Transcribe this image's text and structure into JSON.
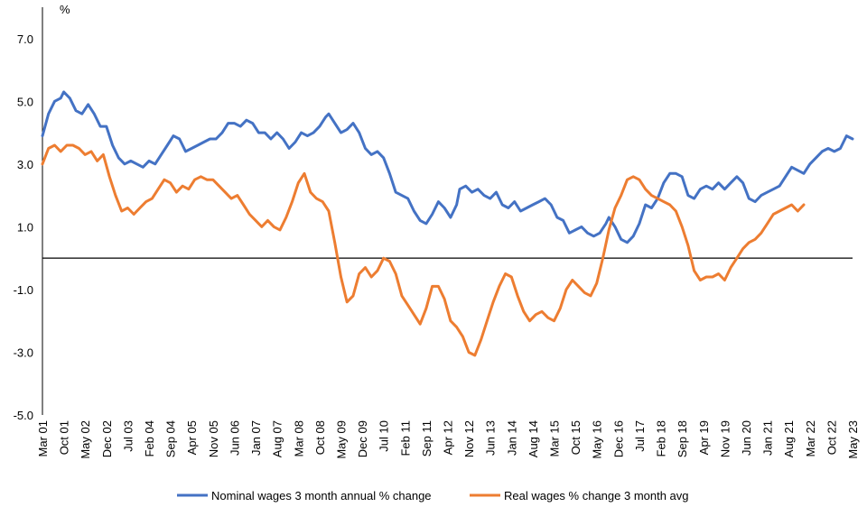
{
  "chart_data": {
    "type": "line",
    "y_unit_label": "%",
    "ylim": [
      -5,
      8
    ],
    "y_ticks": [
      7,
      5,
      3,
      1,
      -1,
      -3,
      -5
    ],
    "y_tick_labels": [
      "7.0",
      "5.0",
      "3.0",
      "1.0",
      "-1.0",
      "-3.0",
      "-5.0"
    ],
    "x_range": [
      0,
      266
    ],
    "x_tick_labels": [
      "Mar 01",
      "Oct 01",
      "May 02",
      "Dec 02",
      "Jul 03",
      "Feb 04",
      "Sep 04",
      "Apr 05",
      "Nov 05",
      "Jun 06",
      "Jan 07",
      "Aug 07",
      "Mar 08",
      "Oct 08",
      "May 09",
      "Dec 09",
      "Jul 10",
      "Feb 11",
      "Sep 11",
      "Apr 12",
      "Nov 12",
      "Jun 13",
      "Jan 14",
      "Aug 14",
      "Mar 15",
      "Oct 15",
      "May 16",
      "Dec 16",
      "Jul 17",
      "Feb 18",
      "Sep 18",
      "Apr 19",
      "Nov 19",
      "Jun 20",
      "Jan 21",
      "Aug 21",
      "Mar 22",
      "Oct 22",
      "May 23"
    ],
    "x_tick_step_months": 7,
    "zero_line": true,
    "series": [
      {
        "name": "Nominal wages 3 month annual % change",
        "color": "#4472C4",
        "points": [
          [
            0,
            3.9
          ],
          [
            2,
            4.6
          ],
          [
            4,
            5.0
          ],
          [
            6,
            5.1
          ],
          [
            7,
            5.3
          ],
          [
            9,
            5.1
          ],
          [
            11,
            4.7
          ],
          [
            13,
            4.6
          ],
          [
            15,
            4.9
          ],
          [
            17,
            4.6
          ],
          [
            19,
            4.2
          ],
          [
            21,
            4.2
          ],
          [
            23,
            3.6
          ],
          [
            25,
            3.2
          ],
          [
            27,
            3.0
          ],
          [
            29,
            3.1
          ],
          [
            31,
            3.0
          ],
          [
            33,
            2.9
          ],
          [
            35,
            3.1
          ],
          [
            37,
            3.0
          ],
          [
            39,
            3.3
          ],
          [
            41,
            3.6
          ],
          [
            43,
            3.9
          ],
          [
            45,
            3.8
          ],
          [
            47,
            3.4
          ],
          [
            49,
            3.5
          ],
          [
            51,
            3.6
          ],
          [
            53,
            3.7
          ],
          [
            55,
            3.8
          ],
          [
            57,
            3.8
          ],
          [
            59,
            4.0
          ],
          [
            61,
            4.3
          ],
          [
            63,
            4.3
          ],
          [
            65,
            4.2
          ],
          [
            67,
            4.4
          ],
          [
            69,
            4.3
          ],
          [
            71,
            4.0
          ],
          [
            73,
            4.0
          ],
          [
            75,
            3.8
          ],
          [
            77,
            4.0
          ],
          [
            79,
            3.8
          ],
          [
            81,
            3.5
          ],
          [
            83,
            3.7
          ],
          [
            85,
            4.0
          ],
          [
            87,
            3.9
          ],
          [
            89,
            4.0
          ],
          [
            91,
            4.2
          ],
          [
            93,
            4.5
          ],
          [
            94,
            4.6
          ],
          [
            96,
            4.3
          ],
          [
            98,
            4.0
          ],
          [
            100,
            4.1
          ],
          [
            102,
            4.3
          ],
          [
            104,
            4.0
          ],
          [
            106,
            3.5
          ],
          [
            108,
            3.3
          ],
          [
            110,
            3.4
          ],
          [
            112,
            3.2
          ],
          [
            114,
            2.7
          ],
          [
            116,
            2.1
          ],
          [
            118,
            2.0
          ],
          [
            120,
            1.9
          ],
          [
            122,
            1.5
          ],
          [
            124,
            1.2
          ],
          [
            126,
            1.1
          ],
          [
            128,
            1.4
          ],
          [
            130,
            1.8
          ],
          [
            132,
            1.6
          ],
          [
            134,
            1.3
          ],
          [
            136,
            1.7
          ],
          [
            137,
            2.2
          ],
          [
            139,
            2.3
          ],
          [
            141,
            2.1
          ],
          [
            143,
            2.2
          ],
          [
            145,
            2.0
          ],
          [
            147,
            1.9
          ],
          [
            149,
            2.1
          ],
          [
            151,
            1.7
          ],
          [
            153,
            1.6
          ],
          [
            155,
            1.8
          ],
          [
            157,
            1.5
          ],
          [
            159,
            1.6
          ],
          [
            161,
            1.7
          ],
          [
            163,
            1.8
          ],
          [
            165,
            1.9
          ],
          [
            167,
            1.7
          ],
          [
            169,
            1.3
          ],
          [
            171,
            1.2
          ],
          [
            173,
            0.8
          ],
          [
            175,
            0.9
          ],
          [
            177,
            1.0
          ],
          [
            179,
            0.8
          ],
          [
            181,
            0.7
          ],
          [
            183,
            0.8
          ],
          [
            185,
            1.1
          ],
          [
            186,
            1.3
          ],
          [
            188,
            1.0
          ],
          [
            190,
            0.6
          ],
          [
            192,
            0.5
          ],
          [
            194,
            0.7
          ],
          [
            196,
            1.1
          ],
          [
            198,
            1.7
          ],
          [
            200,
            1.6
          ],
          [
            202,
            1.9
          ],
          [
            204,
            2.4
          ],
          [
            206,
            2.7
          ],
          [
            208,
            2.7
          ],
          [
            210,
            2.6
          ],
          [
            212,
            2.0
          ],
          [
            214,
            1.9
          ],
          [
            216,
            2.2
          ],
          [
            218,
            2.3
          ],
          [
            220,
            2.2
          ],
          [
            222,
            2.4
          ],
          [
            224,
            2.2
          ],
          [
            226,
            2.4
          ],
          [
            228,
            2.6
          ],
          [
            230,
            2.4
          ],
          [
            232,
            1.9
          ],
          [
            234,
            1.8
          ],
          [
            236,
            2.0
          ],
          [
            238,
            2.1
          ],
          [
            240,
            2.2
          ],
          [
            242,
            2.3
          ],
          [
            244,
            2.6
          ],
          [
            246,
            2.9
          ],
          [
            248,
            2.8
          ],
          [
            250,
            2.7
          ],
          [
            252,
            3.0
          ],
          [
            254,
            3.2
          ],
          [
            256,
            3.4
          ],
          [
            258,
            3.5
          ],
          [
            260,
            3.4
          ],
          [
            262,
            3.5
          ],
          [
            264,
            3.9
          ],
          [
            266,
            3.8
          ]
        ]
      },
      {
        "name": "Real wages % change 3 month avg",
        "color": "#ED7D31",
        "points": [
          [
            0,
            3.0
          ],
          [
            2,
            3.5
          ],
          [
            4,
            3.6
          ],
          [
            6,
            3.4
          ],
          [
            8,
            3.6
          ],
          [
            10,
            3.6
          ],
          [
            12,
            3.5
          ],
          [
            14,
            3.3
          ],
          [
            16,
            3.4
          ],
          [
            18,
            3.1
          ],
          [
            20,
            3.3
          ],
          [
            22,
            2.6
          ],
          [
            24,
            2.0
          ],
          [
            26,
            1.5
          ],
          [
            28,
            1.6
          ],
          [
            30,
            1.4
          ],
          [
            32,
            1.6
          ],
          [
            34,
            1.8
          ],
          [
            36,
            1.9
          ],
          [
            38,
            2.2
          ],
          [
            40,
            2.5
          ],
          [
            42,
            2.4
          ],
          [
            44,
            2.1
          ],
          [
            46,
            2.3
          ],
          [
            48,
            2.2
          ],
          [
            50,
            2.5
          ],
          [
            52,
            2.6
          ],
          [
            54,
            2.5
          ],
          [
            56,
            2.5
          ],
          [
            58,
            2.3
          ],
          [
            60,
            2.1
          ],
          [
            62,
            1.9
          ],
          [
            64,
            2.0
          ],
          [
            66,
            1.7
          ],
          [
            68,
            1.4
          ],
          [
            70,
            1.2
          ],
          [
            72,
            1.0
          ],
          [
            74,
            1.2
          ],
          [
            76,
            1.0
          ],
          [
            78,
            0.9
          ],
          [
            80,
            1.3
          ],
          [
            82,
            1.8
          ],
          [
            84,
            2.4
          ],
          [
            86,
            2.7
          ],
          [
            88,
            2.1
          ],
          [
            90,
            1.9
          ],
          [
            92,
            1.8
          ],
          [
            94,
            1.5
          ],
          [
            96,
            0.5
          ],
          [
            98,
            -0.6
          ],
          [
            100,
            -1.4
          ],
          [
            102,
            -1.2
          ],
          [
            104,
            -0.5
          ],
          [
            106,
            -0.3
          ],
          [
            108,
            -0.6
          ],
          [
            110,
            -0.4
          ],
          [
            112,
            0.0
          ],
          [
            114,
            -0.1
          ],
          [
            116,
            -0.5
          ],
          [
            118,
            -1.2
          ],
          [
            120,
            -1.5
          ],
          [
            122,
            -1.8
          ],
          [
            124,
            -2.1
          ],
          [
            126,
            -1.6
          ],
          [
            128,
            -0.9
          ],
          [
            130,
            -0.9
          ],
          [
            132,
            -1.3
          ],
          [
            134,
            -2.0
          ],
          [
            136,
            -2.2
          ],
          [
            138,
            -2.5
          ],
          [
            140,
            -3.0
          ],
          [
            142,
            -3.1
          ],
          [
            144,
            -2.6
          ],
          [
            146,
            -2.0
          ],
          [
            148,
            -1.4
          ],
          [
            150,
            -0.9
          ],
          [
            152,
            -0.5
          ],
          [
            154,
            -0.6
          ],
          [
            156,
            -1.2
          ],
          [
            158,
            -1.7
          ],
          [
            160,
            -2.0
          ],
          [
            162,
            -1.8
          ],
          [
            164,
            -1.7
          ],
          [
            166,
            -1.9
          ],
          [
            168,
            -2.0
          ],
          [
            170,
            -1.6
          ],
          [
            172,
            -1.0
          ],
          [
            174,
            -0.7
          ],
          [
            176,
            -0.9
          ],
          [
            178,
            -1.1
          ],
          [
            180,
            -1.2
          ],
          [
            182,
            -0.8
          ],
          [
            184,
            0.0
          ],
          [
            186,
            0.9
          ],
          [
            188,
            1.6
          ],
          [
            190,
            2.0
          ],
          [
            192,
            2.5
          ],
          [
            194,
            2.6
          ],
          [
            196,
            2.5
          ],
          [
            198,
            2.2
          ],
          [
            200,
            2.0
          ],
          [
            202,
            1.9
          ],
          [
            204,
            1.8
          ],
          [
            206,
            1.7
          ],
          [
            208,
            1.5
          ],
          [
            210,
            1.0
          ],
          [
            212,
            0.4
          ],
          [
            214,
            -0.4
          ],
          [
            216,
            -0.7
          ],
          [
            218,
            -0.6
          ],
          [
            220,
            -0.6
          ],
          [
            222,
            -0.5
          ],
          [
            224,
            -0.7
          ],
          [
            226,
            -0.3
          ],
          [
            228,
            0.0
          ],
          [
            230,
            0.3
          ],
          [
            232,
            0.5
          ],
          [
            234,
            0.6
          ],
          [
            236,
            0.8
          ],
          [
            238,
            1.1
          ],
          [
            240,
            1.4
          ],
          [
            242,
            1.5
          ],
          [
            244,
            1.6
          ],
          [
            246,
            1.7
          ],
          [
            248,
            1.5
          ],
          [
            250,
            1.7
          ]
        ]
      }
    ]
  },
  "legend": {
    "nominal_label": "Nominal wages 3 month annual % change",
    "real_label": "Real wages % change 3 month avg"
  }
}
